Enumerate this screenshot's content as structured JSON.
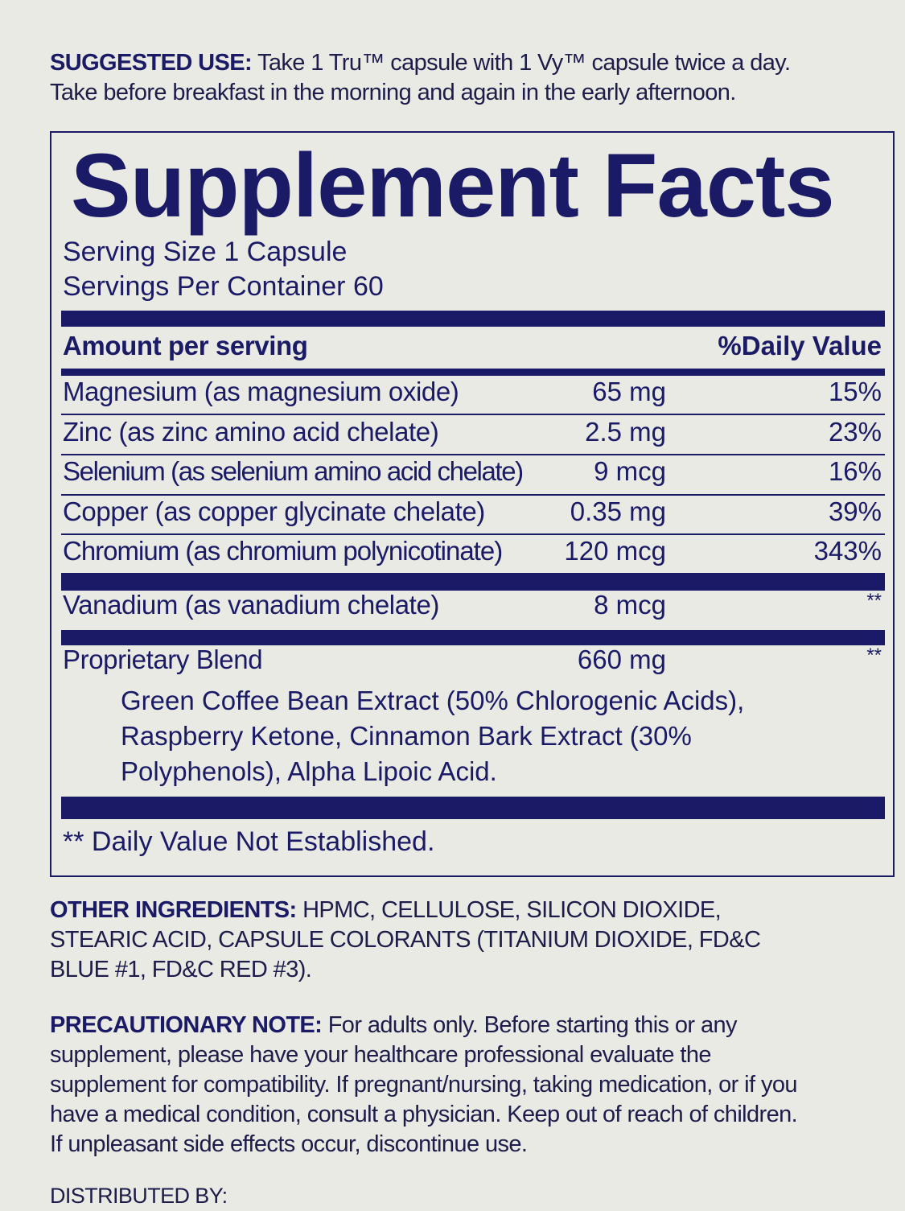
{
  "suggested_use": {
    "label": "SUGGESTED USE:",
    "line1": " Take 1 Tru™ capsule with 1 Vy™ capsule twice a day.",
    "line2": "Take before breakfast in the morning and again in the early afternoon."
  },
  "facts": {
    "title": "Supplement Facts",
    "serving_size": "Serving Size 1 Capsule",
    "servings_per_container": "Servings Per Container 60",
    "header_amount": "Amount per serving",
    "header_dv": "%Daily Value",
    "rows": [
      {
        "name": "Magnesium (as magnesium oxide)",
        "amount": "65 mg",
        "dv": "15%"
      },
      {
        "name": "Zinc (as zinc amino acid chelate)",
        "amount": "2.5 mg",
        "dv": "23%"
      },
      {
        "name": "Selenium (as selenium amino acid chelate)",
        "amount": "9 mcg",
        "dv": "16%"
      },
      {
        "name": "Copper (as copper glycinate chelate)",
        "amount": "0.35 mg",
        "dv": "39%"
      },
      {
        "name": "Chromium (as chromium polynicotinate)",
        "amount": "120 mcg",
        "dv": "343%"
      }
    ],
    "vanadium": {
      "name": "Vanadium (as vanadium chelate)",
      "amount": "8 mcg",
      "dv": "**"
    },
    "blend": {
      "name": "Proprietary Blend",
      "amount": "660 mg",
      "dv": "**",
      "lines": [
        "Green Coffee Bean Extract (50% Chlorogenic Acids),",
        "Raspberry Ketone, Cinnamon Bark Extract (30%",
        "Polyphenols), Alpha Lipoic Acid."
      ]
    },
    "footnote": "** Daily Value Not Established."
  },
  "other_ingredients": {
    "label": "OTHER INGREDIENTS:",
    "line1": " HPMC, CELLULOSE, SILICON DIOXIDE,",
    "line2": "STEARIC ACID, CAPSULE COLORANTS (TITANIUM DIOXIDE, FD&C",
    "line3": "BLUE #1, FD&C RED #3)."
  },
  "precaution": {
    "label": "PRECAUTIONARY NOTE:",
    "line1": " For adults only. Before starting this or any",
    "line2": "supplement, please have your healthcare professional evaluate the",
    "line3": "supplement for compatibility. If pregnant/nursing, taking medication, or if you",
    "line4": "have a medical condition, consult a physician. Keep out of reach of children.",
    "line5": "If unpleasant side effects occur, discontinue use."
  },
  "distributed_by": "DISTRIBUTED BY:",
  "colors": {
    "navy": "#1b1a66",
    "background": "#e8eae3"
  }
}
